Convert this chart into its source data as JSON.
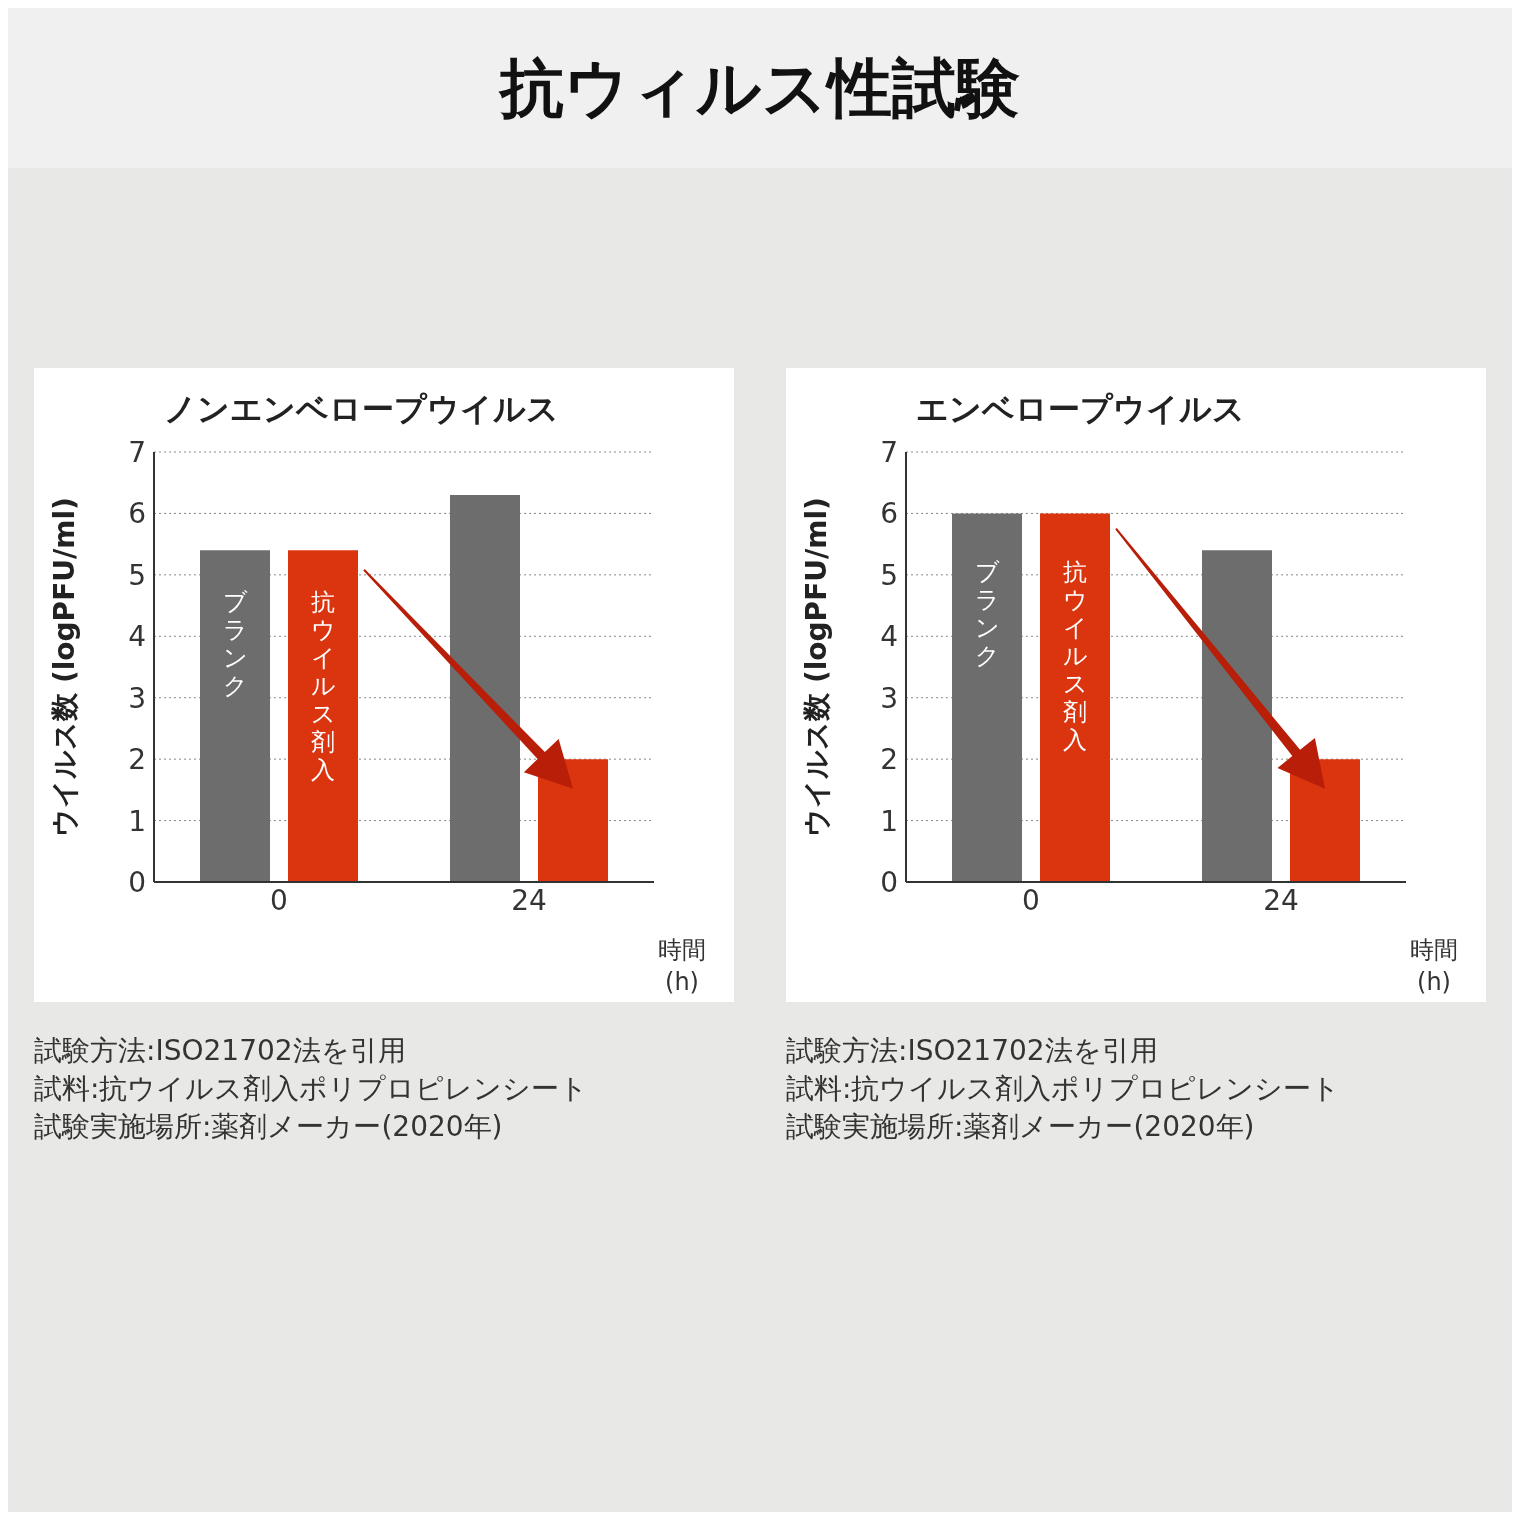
{
  "chart_data": [
    {
      "type": "bar",
      "title": "抗ウィルス性試験",
      "subtitle": "ノンエンベロープウイルス",
      "ylabel": "ウイルス数 (logPFU/ml)",
      "xlabel": "時間 (h)",
      "categories": [
        "0",
        "24"
      ],
      "series": [
        {
          "name": "ブランク",
          "color": "#6d6d6d",
          "values": [
            5.4,
            6.3
          ]
        },
        {
          "name": "抗ウイルス剤入",
          "color": "#db3510",
          "values": [
            5.4,
            2.0
          ]
        }
      ],
      "ylim": [
        0,
        7
      ],
      "yticks": [
        0,
        1,
        2,
        3,
        4,
        5,
        6,
        7
      ],
      "grid": "y",
      "legend": false,
      "annotations": [
        "試験方法:ISO21702法を引用",
        "試料:抗ウイルス剤入ポリプロピレンシート",
        "試験実施場所:薬剤メーカー(2020年)"
      ]
    },
    {
      "type": "bar",
      "subtitle": "エンベロープウイルス",
      "ylabel": "ウイルス数 (logPFU/ml)",
      "xlabel": "時間 (h)",
      "categories": [
        "0",
        "24"
      ],
      "series": [
        {
          "name": "ブランク",
          "color": "#6d6d6d",
          "values": [
            6.0,
            5.4
          ]
        },
        {
          "name": "抗ウイルス剤入",
          "color": "#db3510",
          "values": [
            6.0,
            2.0
          ]
        }
      ],
      "ylim": [
        0,
        7
      ],
      "yticks": [
        0,
        1,
        2,
        3,
        4,
        5,
        6,
        7
      ],
      "grid": "y",
      "legend": false,
      "annotations": [
        "試験方法:ISO21702法を引用",
        "試料:抗ウイルス剤入ポリプロピレンシート",
        "試験実施場所:薬剤メーカー(2020年)"
      ]
    }
  ]
}
